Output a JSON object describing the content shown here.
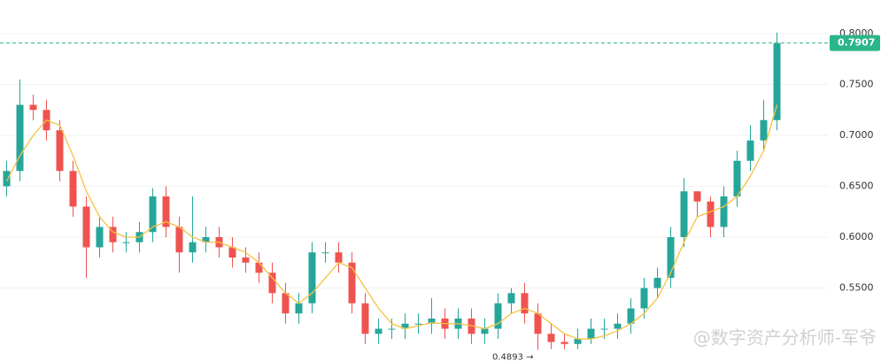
{
  "chart_data": {
    "type": "candlestick",
    "ylim": [
      0.4783,
      0.833
    ],
    "yticks": [
      {
        "value": 0.55,
        "label": "0.5500"
      },
      {
        "value": 0.6,
        "label": "0.6000"
      },
      {
        "value": 0.65,
        "label": "0.6500"
      },
      {
        "value": 0.7,
        "label": "0.7000"
      },
      {
        "value": 0.75,
        "label": "0.7500"
      },
      {
        "value": 0.8,
        "label": "0.8000"
      }
    ],
    "grid": true,
    "up_color": "#26a69a",
    "down_color": "#ef5350",
    "candles": {
      "open": [
        0.65,
        0.665,
        0.73,
        0.725,
        0.705,
        0.665,
        0.63,
        0.59,
        0.61,
        0.595,
        0.595,
        0.605,
        0.64,
        0.61,
        0.585,
        0.595,
        0.6,
        0.59,
        0.58,
        0.575,
        0.565,
        0.545,
        0.525,
        0.535,
        0.585,
        0.585,
        0.575,
        0.535,
        0.505,
        0.51,
        0.51,
        0.515,
        0.515,
        0.52,
        0.51,
        0.52,
        0.505,
        0.51,
        0.535,
        0.545,
        0.525,
        0.505,
        0.497,
        0.495,
        0.5,
        0.51,
        0.51,
        0.515,
        0.53,
        0.55,
        0.56,
        0.6,
        0.645,
        0.635,
        0.61,
        0.64,
        0.675,
        0.695,
        0.715
      ],
      "high": [
        0.675,
        0.755,
        0.74,
        0.735,
        0.715,
        0.675,
        0.64,
        0.62,
        0.62,
        0.605,
        0.615,
        0.648,
        0.65,
        0.62,
        0.64,
        0.61,
        0.61,
        0.6,
        0.59,
        0.585,
        0.575,
        0.555,
        0.545,
        0.595,
        0.595,
        0.595,
        0.585,
        0.545,
        0.52,
        0.52,
        0.525,
        0.525,
        0.54,
        0.53,
        0.53,
        0.53,
        0.52,
        0.545,
        0.55,
        0.555,
        0.535,
        0.515,
        0.505,
        0.51,
        0.52,
        0.52,
        0.525,
        0.54,
        0.56,
        0.57,
        0.61,
        0.658,
        0.645,
        0.64,
        0.65,
        0.685,
        0.71,
        0.735,
        0.801
      ],
      "low": [
        0.64,
        0.655,
        0.715,
        0.695,
        0.655,
        0.62,
        0.56,
        0.58,
        0.585,
        0.585,
        0.585,
        0.595,
        0.6,
        0.565,
        0.575,
        0.585,
        0.58,
        0.57,
        0.565,
        0.555,
        0.535,
        0.515,
        0.515,
        0.525,
        0.575,
        0.565,
        0.525,
        0.495,
        0.495,
        0.5,
        0.5,
        0.505,
        0.505,
        0.5,
        0.5,
        0.495,
        0.495,
        0.5,
        0.525,
        0.515,
        0.4893,
        0.49,
        0.49,
        0.49,
        0.495,
        0.5,
        0.5,
        0.505,
        0.52,
        0.54,
        0.55,
        0.59,
        0.62,
        0.6,
        0.6,
        0.63,
        0.665,
        0.685,
        0.705
      ],
      "close": [
        0.665,
        0.73,
        0.725,
        0.705,
        0.665,
        0.63,
        0.59,
        0.61,
        0.595,
        0.595,
        0.605,
        0.64,
        0.61,
        0.585,
        0.595,
        0.6,
        0.59,
        0.58,
        0.575,
        0.565,
        0.545,
        0.525,
        0.535,
        0.585,
        0.585,
        0.575,
        0.535,
        0.505,
        0.51,
        0.51,
        0.515,
        0.515,
        0.52,
        0.51,
        0.52,
        0.505,
        0.51,
        0.535,
        0.545,
        0.525,
        0.505,
        0.497,
        0.495,
        0.5,
        0.51,
        0.51,
        0.515,
        0.53,
        0.55,
        0.56,
        0.6,
        0.645,
        0.635,
        0.61,
        0.64,
        0.675,
        0.695,
        0.715,
        0.7907
      ]
    },
    "ma": {
      "color": "#f5c242",
      "values": [
        0.655,
        0.68,
        0.7,
        0.715,
        0.71,
        0.68,
        0.645,
        0.62,
        0.605,
        0.6,
        0.6,
        0.61,
        0.615,
        0.61,
        0.6,
        0.595,
        0.595,
        0.59,
        0.585,
        0.575,
        0.56,
        0.545,
        0.535,
        0.545,
        0.56,
        0.575,
        0.57,
        0.55,
        0.53,
        0.515,
        0.51,
        0.513,
        0.516,
        0.515,
        0.515,
        0.513,
        0.51,
        0.515,
        0.525,
        0.53,
        0.525,
        0.515,
        0.505,
        0.5,
        0.5,
        0.503,
        0.508,
        0.515,
        0.525,
        0.54,
        0.565,
        0.595,
        0.62,
        0.625,
        0.63,
        0.64,
        0.66,
        0.685,
        0.73
      ]
    },
    "last_price": {
      "value": 0.7907,
      "label": "0.7907",
      "color": "#2bb58a"
    },
    "low_marker": {
      "value": 0.4893,
      "label": "0.4893 →"
    },
    "watermark": "@数字资产分析师-军爷"
  }
}
